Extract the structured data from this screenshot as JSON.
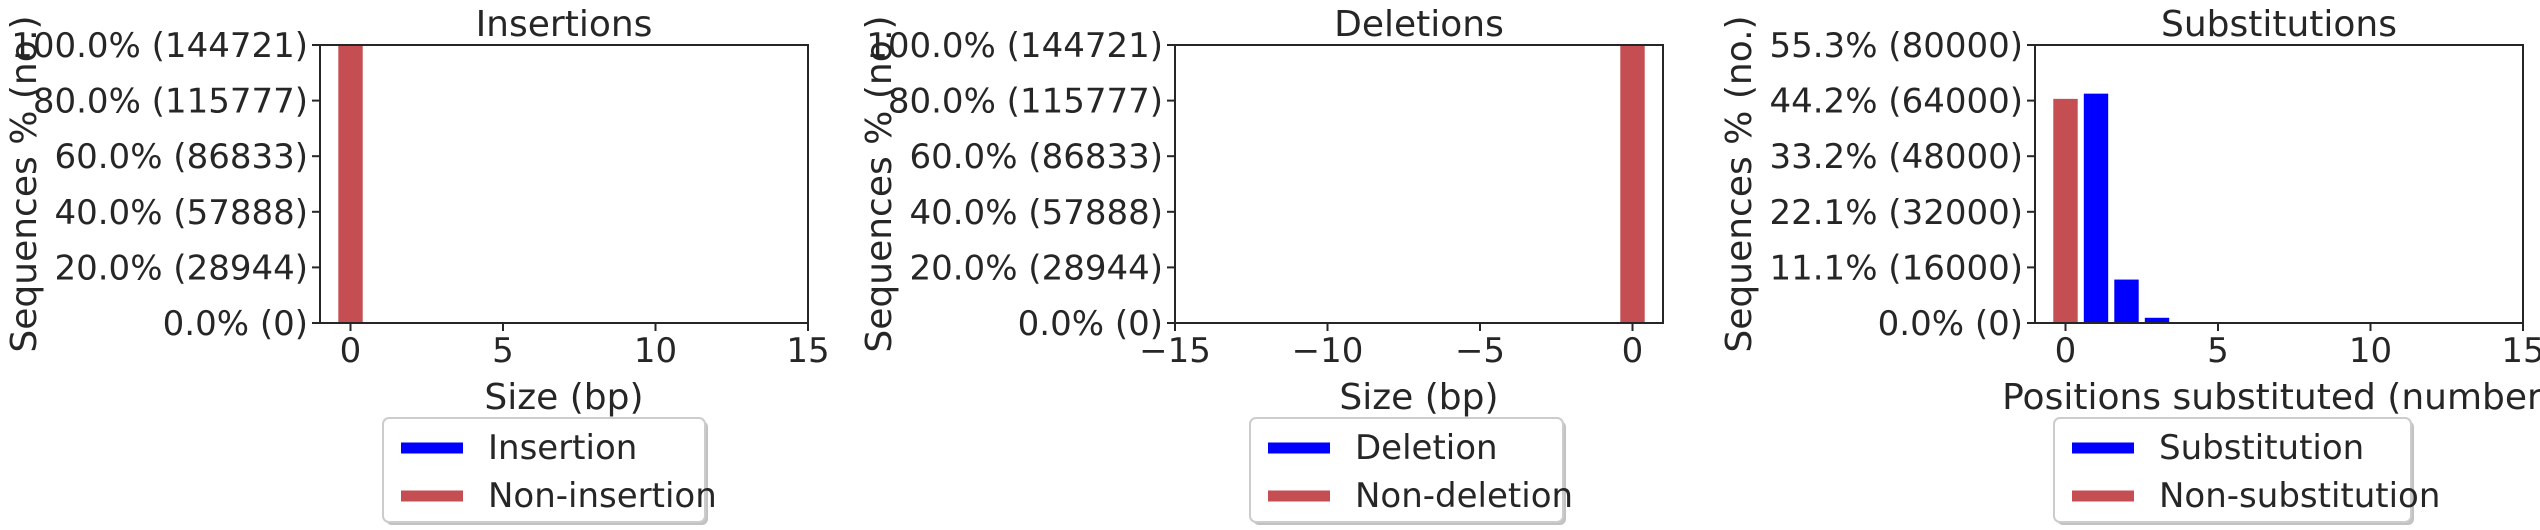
{
  "chart_data": [
    {
      "type": "bar",
      "title": "Insertions",
      "xlabel": "Size (bp)",
      "ylabel": "Sequences % (no.)",
      "xlim": [
        -1,
        15
      ],
      "xticks": [
        "0",
        "5",
        "10",
        "15"
      ],
      "ylim": [
        0,
        144721
      ],
      "yticks": [
        "0.0% (0)",
        "20.0% (28944)",
        "40.0% (57888)",
        "60.0% (86833)",
        "80.0% (115777)",
        "100.0% (144721)"
      ],
      "series": [
        {
          "name": "Insertion",
          "color": "#0000ff",
          "points": []
        },
        {
          "name": "Non-insertion",
          "color": "#c44e52",
          "points": [
            {
              "x": 0,
              "y": 144721
            }
          ]
        }
      ],
      "legend": "below"
    },
    {
      "type": "bar",
      "title": "Deletions",
      "xlabel": "Size (bp)",
      "ylabel": "Sequences % (no.)",
      "xlim": [
        -15,
        1
      ],
      "xticks": [
        "−15",
        "−10",
        "−5",
        "0"
      ],
      "ylim": [
        0,
        144721
      ],
      "yticks": [
        "0.0% (0)",
        "20.0% (28944)",
        "40.0% (57888)",
        "60.0% (86833)",
        "80.0% (115777)",
        "100.0% (144721)"
      ],
      "series": [
        {
          "name": "Deletion",
          "color": "#0000ff",
          "points": []
        },
        {
          "name": "Non-deletion",
          "color": "#c44e52",
          "points": [
            {
              "x": 0,
              "y": 144721
            }
          ]
        }
      ],
      "legend": "below"
    },
    {
      "type": "bar",
      "title": "Substitutions",
      "xlabel": "Positions substituted (number)",
      "ylabel": "Sequences % (no.)",
      "xlim": [
        -1,
        15
      ],
      "xticks": [
        "0",
        "5",
        "10",
        "15"
      ],
      "ylim": [
        0,
        80000
      ],
      "yticks": [
        "0.0% (0)",
        "11.1% (16000)",
        "22.1% (32000)",
        "33.2% (48000)",
        "44.2% (64000)",
        "55.3% (80000)"
      ],
      "series": [
        {
          "name": "Substitution",
          "color": "#0000ff",
          "points": [
            {
              "x": 1,
              "y": 66000
            },
            {
              "x": 2,
              "y": 12500
            },
            {
              "x": 3,
              "y": 1500
            },
            {
              "x": 4,
              "y": 150
            }
          ]
        },
        {
          "name": "Non-substitution",
          "color": "#c44e52",
          "points": [
            {
              "x": 0,
              "y": 64500
            }
          ]
        }
      ],
      "legend": "below"
    }
  ]
}
